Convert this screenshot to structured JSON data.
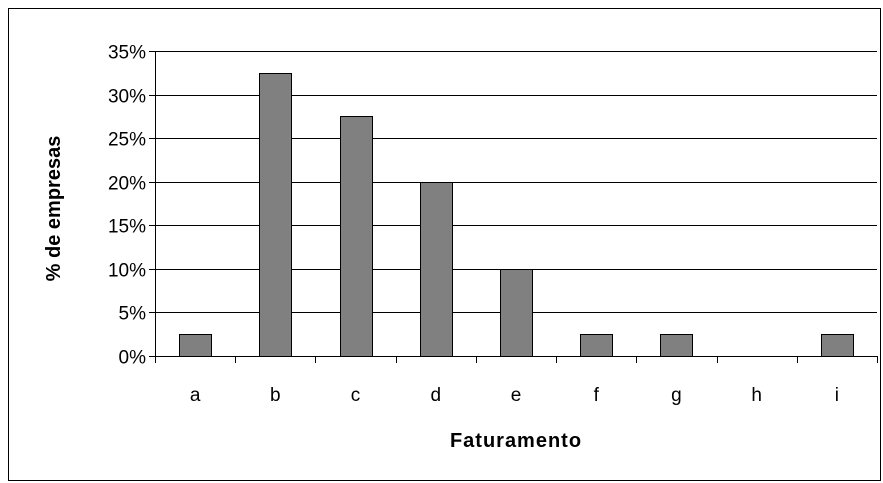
{
  "chart_data": {
    "type": "bar",
    "title": "",
    "xlabel": "Faturamento",
    "ylabel": "% de empresas",
    "categories": [
      "a",
      "b",
      "c",
      "d",
      "e",
      "f",
      "g",
      "h",
      "i"
    ],
    "values": [
      2.5,
      32.5,
      27.5,
      20,
      10,
      2.5,
      2.5,
      0,
      2.5
    ],
    "ylim": [
      0,
      35
    ],
    "yticks": [
      0,
      5,
      10,
      15,
      20,
      25,
      30,
      35
    ],
    "ytick_labels": [
      "0%",
      "5%",
      "10%",
      "15%",
      "20%",
      "25%",
      "30%",
      "35%"
    ],
    "grid": true,
    "legend": "none",
    "bar_color": "#808080",
    "bar_edge_color": "#000000"
  }
}
